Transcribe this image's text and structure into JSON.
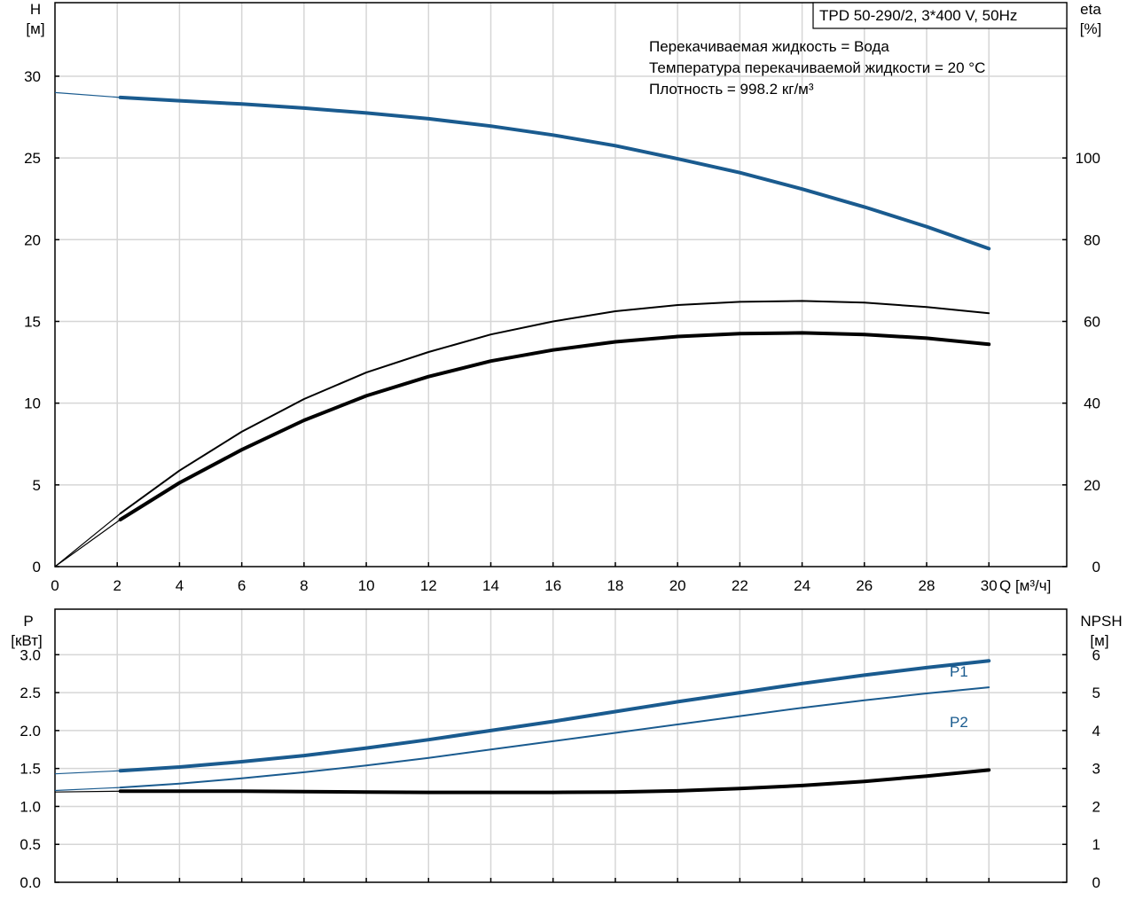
{
  "chart_data": [
    {
      "type": "line",
      "panel": "top",
      "title": "TPD 50-290/2, 3*400 V, 50Hz",
      "annotations": [
        "Перекачиваемая жидкость = Вода",
        "Температура перекачиваемой жидкости = 20 °C",
        "Плотность = 998.2 кг/м³"
      ],
      "y_left_label": [
        "H",
        "[м]"
      ],
      "y_right_label": [
        "eta",
        "[%]"
      ],
      "xlabel": "Q [м³/ч]",
      "xlim": [
        0,
        32.5
      ],
      "x_ticks": [
        0,
        2,
        4,
        6,
        8,
        10,
        12,
        14,
        16,
        18,
        20,
        22,
        24,
        26,
        28,
        30
      ],
      "ylim_left": [
        0,
        34.5
      ],
      "y_left_ticks": [
        0,
        5,
        10,
        15,
        20,
        25,
        30
      ],
      "ylim_right": [
        0,
        138
      ],
      "y_right_ticks": [
        0,
        20,
        40,
        60,
        80,
        100
      ],
      "grid": true,
      "series": [
        {
          "axis": "left",
          "color": "#1a5b8f",
          "thick": true,
          "x": [
            2.1,
            4,
            6,
            8,
            10,
            12,
            14,
            16,
            18,
            20,
            22,
            24,
            26,
            28,
            30
          ],
          "y": [
            28.7,
            28.5,
            28.3,
            28.05,
            27.75,
            27.4,
            26.95,
            26.4,
            25.75,
            24.95,
            24.1,
            23.1,
            22.0,
            20.8,
            19.45
          ],
          "extension": {
            "x": [
              0,
              2.1
            ],
            "y": [
              29.0,
              28.7
            ]
          }
        },
        {
          "axis": "right",
          "color": "#000000",
          "thick": false,
          "x": [
            2.1,
            4,
            6,
            8,
            10,
            12,
            14,
            16,
            18,
            20,
            22,
            24,
            26,
            28,
            30
          ],
          "y": [
            13.0,
            23.5,
            33.0,
            41.0,
            47.5,
            52.5,
            56.8,
            60.0,
            62.5,
            64.0,
            64.8,
            65.0,
            64.6,
            63.5,
            62.0
          ],
          "extension": {
            "x": [
              0,
              2.1
            ],
            "y": [
              0,
              13.0
            ]
          }
        },
        {
          "axis": "right",
          "color": "#000000",
          "thick": true,
          "x": [
            2.1,
            4,
            6,
            8,
            10,
            12,
            14,
            16,
            18,
            20,
            22,
            24,
            26,
            28,
            30
          ],
          "y": [
            11.5,
            20.5,
            28.6,
            35.8,
            41.8,
            46.5,
            50.3,
            53.0,
            55.0,
            56.3,
            57.0,
            57.2,
            56.8,
            55.9,
            54.4
          ],
          "extension": {
            "x": [
              0,
              2.1
            ],
            "y": [
              0,
              11.5
            ]
          }
        }
      ]
    },
    {
      "type": "line",
      "panel": "bottom",
      "y_left_label": [
        "P",
        "[кВт]"
      ],
      "y_right_label": [
        "NPSH",
        "[м]"
      ],
      "xlim": [
        0,
        32.5
      ],
      "ylim_left": [
        0,
        3.6
      ],
      "y_left_ticks": [
        "0.0",
        "0.5",
        "1.0",
        "1.5",
        "2.0",
        "2.5",
        "3.0"
      ],
      "ylim_right": [
        0,
        7.2
      ],
      "y_right_ticks": [
        0,
        1,
        2,
        3,
        4,
        5,
        6
      ],
      "grid": true,
      "series": [
        {
          "name": "P1",
          "axis": "left",
          "color": "#1a5b8f",
          "thick": true,
          "x": [
            2.1,
            4,
            6,
            8,
            10,
            12,
            14,
            16,
            18,
            20,
            22,
            24,
            26,
            28,
            30
          ],
          "y": [
            1.47,
            1.52,
            1.59,
            1.67,
            1.77,
            1.88,
            2.0,
            2.12,
            2.25,
            2.38,
            2.5,
            2.62,
            2.73,
            2.83,
            2.92
          ],
          "extension": {
            "x": [
              0,
              2.1
            ],
            "y": [
              1.43,
              1.47
            ]
          }
        },
        {
          "name": "P2",
          "axis": "left",
          "color": "#1a5b8f",
          "thick": false,
          "x": [
            2.1,
            4,
            6,
            8,
            10,
            12,
            14,
            16,
            18,
            20,
            22,
            24,
            26,
            28,
            30
          ],
          "y": [
            1.25,
            1.3,
            1.37,
            1.45,
            1.54,
            1.64,
            1.75,
            1.86,
            1.97,
            2.08,
            2.19,
            2.3,
            2.4,
            2.49,
            2.57
          ],
          "extension": {
            "x": [
              0,
              2.1
            ],
            "y": [
              1.21,
              1.25
            ]
          }
        },
        {
          "name": "",
          "axis": "right",
          "color": "#000000",
          "thick": true,
          "x": [
            2.1,
            4,
            6,
            8,
            10,
            12,
            14,
            16,
            18,
            20,
            22,
            24,
            26,
            28,
            30
          ],
          "y": [
            2.4,
            2.4,
            2.4,
            2.39,
            2.38,
            2.37,
            2.37,
            2.37,
            2.38,
            2.41,
            2.47,
            2.55,
            2.66,
            2.8,
            2.96
          ],
          "extension": {
            "x": [
              0,
              2.1
            ],
            "y": [
              2.38,
              2.4
            ]
          }
        }
      ],
      "series_labels": [
        "P1",
        "P2"
      ]
    }
  ]
}
